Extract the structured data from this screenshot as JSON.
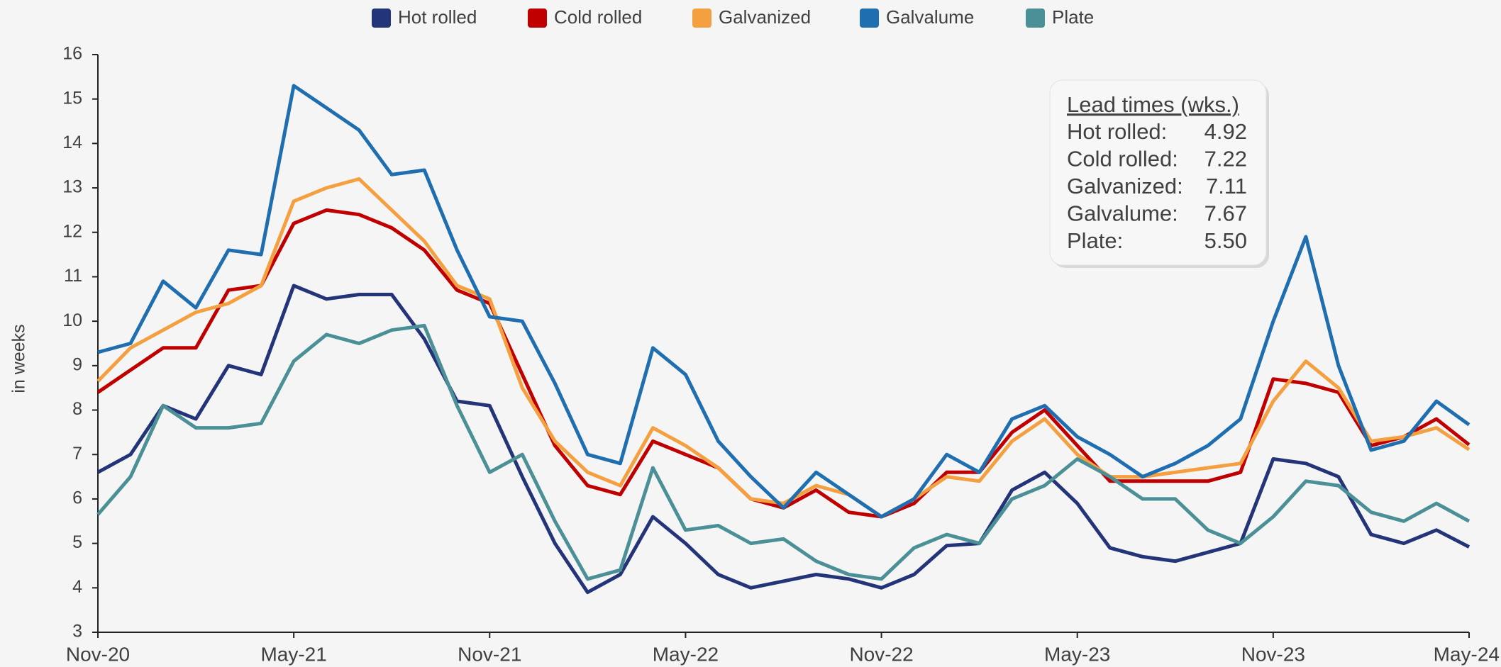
{
  "chart_data": {
    "type": "line",
    "y_label": "in weeks",
    "ylim": [
      3,
      16
    ],
    "yticks": [
      3,
      4,
      5,
      6,
      7,
      8,
      9,
      10,
      11,
      12,
      13,
      14,
      15,
      16
    ],
    "categories": [
      "Nov-20",
      null,
      null,
      null,
      null,
      null,
      "May-21",
      null,
      null,
      null,
      null,
      null,
      "Nov-21",
      null,
      null,
      null,
      null,
      null,
      "May-22",
      null,
      null,
      null,
      null,
      null,
      "Nov-22",
      null,
      null,
      null,
      null,
      null,
      "May-23",
      null,
      null,
      null,
      null,
      null,
      "Nov-23",
      null,
      null,
      null,
      null,
      null,
      "May-24"
    ],
    "series": [
      {
        "name": "Hot rolled",
        "color": "#243478",
        "values": [
          6.6,
          7.0,
          8.1,
          7.8,
          9.0,
          8.8,
          10.8,
          10.5,
          10.6,
          10.6,
          9.6,
          8.2,
          8.1,
          6.5,
          5.0,
          3.9,
          4.3,
          5.6,
          5.0,
          4.3,
          4.0,
          4.15,
          4.3,
          4.2,
          4.0,
          4.3,
          4.95,
          5.0,
          6.2,
          6.6,
          5.9,
          4.9,
          4.7,
          4.6,
          4.8,
          5.0,
          6.9,
          6.8,
          6.5,
          5.2,
          5.0,
          5.3,
          4.92
        ]
      },
      {
        "name": "Cold rolled",
        "color": "#c00000",
        "values": [
          8.4,
          8.9,
          9.4,
          9.4,
          10.7,
          10.8,
          12.2,
          12.5,
          12.4,
          12.1,
          11.6,
          10.7,
          10.4,
          8.8,
          7.2,
          6.3,
          6.1,
          7.3,
          7.0,
          6.7,
          6.0,
          5.8,
          6.2,
          5.7,
          5.6,
          5.9,
          6.6,
          6.6,
          7.5,
          8.0,
          7.2,
          6.4,
          6.4,
          6.4,
          6.4,
          6.6,
          8.7,
          8.6,
          8.4,
          7.2,
          7.4,
          7.8,
          7.22
        ]
      },
      {
        "name": "Galvanized",
        "color": "#f4a040",
        "values": [
          8.65,
          9.4,
          9.8,
          10.2,
          10.4,
          10.8,
          12.7,
          13.0,
          13.2,
          12.5,
          11.8,
          10.8,
          10.5,
          8.5,
          7.3,
          6.6,
          6.3,
          7.6,
          7.2,
          6.7,
          6.0,
          5.9,
          6.3,
          6.1,
          5.6,
          6.0,
          6.5,
          6.4,
          7.3,
          7.8,
          7.0,
          6.5,
          6.5,
          6.6,
          6.7,
          6.8,
          8.2,
          9.1,
          8.5,
          7.3,
          7.4,
          7.6,
          7.11
        ]
      },
      {
        "name": "Galvalume",
        "color": "#1f6fb0",
        "values": [
          9.3,
          9.5,
          10.9,
          10.3,
          11.6,
          11.5,
          15.3,
          14.8,
          14.3,
          13.3,
          13.4,
          11.6,
          10.1,
          10.0,
          8.6,
          7.0,
          6.8,
          9.4,
          8.8,
          7.3,
          6.5,
          5.8,
          6.6,
          6.1,
          5.6,
          6.0,
          7.0,
          6.6,
          7.8,
          8.1,
          7.4,
          7.0,
          6.5,
          6.8,
          7.2,
          7.8,
          10.0,
          11.9,
          9.0,
          7.1,
          7.3,
          8.2,
          7.67
        ]
      },
      {
        "name": "Plate",
        "color": "#4a9096",
        "values": [
          5.65,
          6.5,
          8.1,
          7.6,
          7.6,
          7.7,
          9.1,
          9.7,
          9.5,
          9.8,
          9.9,
          8.1,
          6.6,
          7.0,
          5.5,
          4.2,
          4.4,
          6.7,
          5.3,
          5.4,
          5.0,
          5.1,
          4.6,
          4.3,
          4.2,
          4.9,
          5.2,
          5.0,
          6.0,
          6.3,
          6.9,
          6.5,
          6.0,
          6.0,
          5.3,
          5.0,
          5.6,
          6.4,
          6.3,
          5.7,
          5.5,
          5.9,
          5.5
        ]
      }
    ],
    "annotation": {
      "title": "Lead times (wks.)",
      "rows": [
        {
          "label": "Hot rolled:",
          "value": "4.92",
          "color": "#243478"
        },
        {
          "label": "Cold rolled:",
          "value": "7.22",
          "color": "#c00000"
        },
        {
          "label": "Galvanized:",
          "value": "7.11",
          "color": "#f4a040"
        },
        {
          "label": "Galvalume:",
          "value": "7.67",
          "color": "#1f6fb0"
        },
        {
          "label": "Plate:",
          "value": "5.50",
          "color": "#4a9096"
        }
      ]
    }
  }
}
